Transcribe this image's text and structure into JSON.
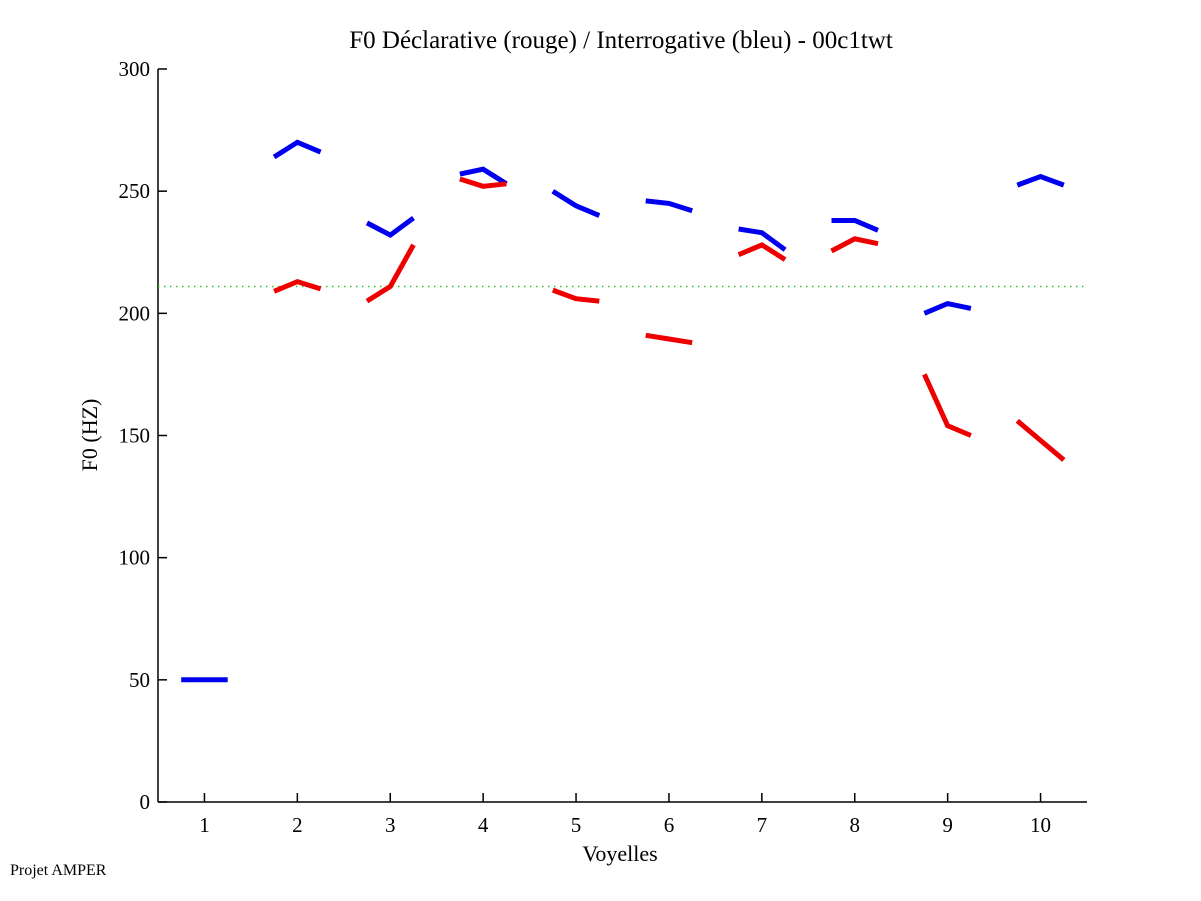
{
  "chart_data": {
    "type": "line",
    "title": "F0 Déclarative (rouge) / Interrogative (bleu) - 00c1twt",
    "xlabel": "Voyelles",
    "ylabel": "F0 (HZ)",
    "xlim": [
      0.5,
      10.5
    ],
    "ylim": [
      0,
      300
    ],
    "xticks": [
      1,
      2,
      3,
      4,
      5,
      6,
      7,
      8,
      9,
      10
    ],
    "yticks": [
      0,
      50,
      100,
      150,
      200,
      250,
      300
    ],
    "grid": false,
    "reference_line": {
      "y": 211,
      "style": "dotted",
      "color": "#22cc22"
    },
    "segment_offsets": [
      -0.25,
      0,
      0.25
    ],
    "series": [
      {
        "name": "Interrogative (bleu)",
        "color": "#0000ee",
        "segments": [
          {
            "vowel": 1,
            "values": [
              50,
              50,
              50
            ]
          },
          {
            "vowel": 2,
            "values": [
              264,
              270,
              266
            ]
          },
          {
            "vowel": 3,
            "values": [
              237,
              232,
              239
            ]
          },
          {
            "vowel": 4,
            "values": [
              257,
              259,
              253
            ]
          },
          {
            "vowel": 5,
            "values": [
              250,
              244,
              240
            ]
          },
          {
            "vowel": 6,
            "values": [
              246,
              245,
              242
            ]
          },
          {
            "vowel": 7,
            "values": [
              234.5,
              233,
              226
            ]
          },
          {
            "vowel": 8,
            "values": [
              238,
              238,
              234
            ]
          },
          {
            "vowel": 9,
            "values": [
              200,
              204,
              202
            ]
          },
          {
            "vowel": 10,
            "values": [
              252.5,
              256,
              252.5
            ]
          }
        ]
      },
      {
        "name": "Déclarative (rouge)",
        "color": "#ee0000",
        "segments": [
          {
            "vowel": 2,
            "values": [
              209,
              213,
              210
            ]
          },
          {
            "vowel": 3,
            "values": [
              205,
              211,
              228
            ]
          },
          {
            "vowel": 4,
            "values": [
              255,
              252,
              253
            ]
          },
          {
            "vowel": 5,
            "values": [
              209.5,
              206,
              205
            ]
          },
          {
            "vowel": 6,
            "values": [
              191,
              189.5,
              188
            ]
          },
          {
            "vowel": 7,
            "values": [
              224,
              228,
              222
            ]
          },
          {
            "vowel": 8,
            "values": [
              225.5,
              230.5,
              228.5
            ]
          },
          {
            "vowel": 9,
            "values": [
              175,
              154,
              150
            ]
          },
          {
            "vowel": 10,
            "values": [
              156,
              148,
              140
            ]
          }
        ]
      }
    ]
  },
  "footer": {
    "text": "Projet AMPER"
  }
}
